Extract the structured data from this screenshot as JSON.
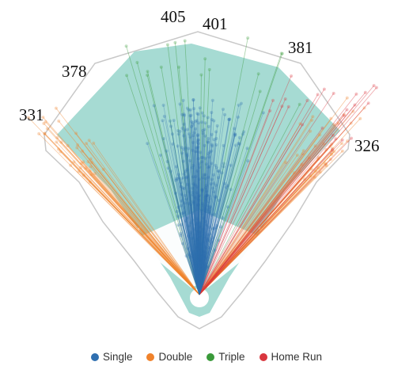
{
  "chart_data": {
    "type": "scatter",
    "title": "",
    "xlabel": "",
    "ylabel": "",
    "units": "ft",
    "fence_distances": [
      {
        "label": "331",
        "angle_deg": -45,
        "distance": 331
      },
      {
        "label": "378",
        "angle_deg": -30,
        "distance": 378
      },
      {
        "label": "405",
        "angle_deg": -6,
        "distance": 405
      },
      {
        "label": "401",
        "angle_deg": 6,
        "distance": 401
      },
      {
        "label": "381",
        "angle_deg": 25,
        "distance": 381
      },
      {
        "label": "326",
        "angle_deg": 45,
        "distance": 326
      }
    ],
    "series": [
      {
        "name": "Single",
        "color": "#2f6fb0",
        "spray_angle_range_deg": [
          -45,
          45
        ],
        "distance_range": [
          40,
          330
        ],
        "approx_count": 3000,
        "concentration": "center"
      },
      {
        "name": "Double",
        "color": "#f0822b",
        "spray_angle_range_deg": [
          -45,
          45
        ],
        "distance_range": [
          260,
          420
        ],
        "approx_count": 700,
        "concentration": "lines"
      },
      {
        "name": "Triple",
        "color": "#3a9a3a",
        "spray_angle_range_deg": [
          -20,
          30
        ],
        "distance_range": [
          340,
          440
        ],
        "approx_count": 150,
        "concentration": "gaps"
      },
      {
        "name": "Home Run",
        "color": "#d9363e",
        "spray_angle_range_deg": [
          15,
          45
        ],
        "distance_range": [
          330,
          460
        ],
        "approx_count": 200,
        "concentration": "right field"
      }
    ],
    "legend_position": "bottom",
    "grid": false
  }
}
